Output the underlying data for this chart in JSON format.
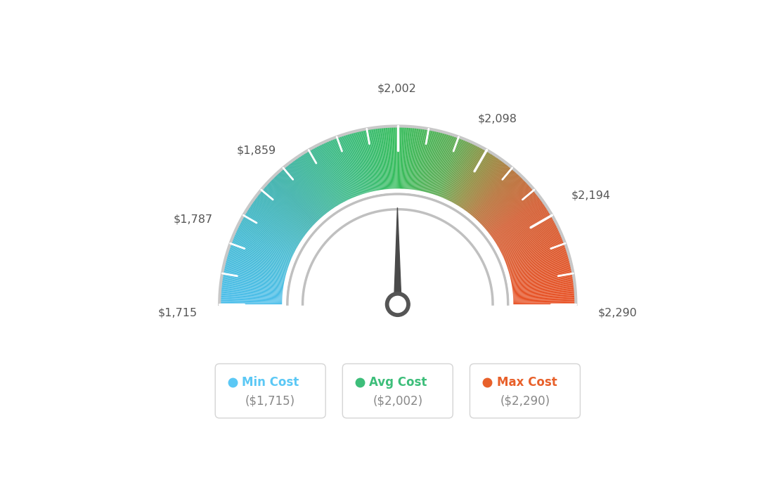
{
  "min_val": 1715,
  "max_val": 2290,
  "avg_val": 2002,
  "tick_values_labeled": [
    1715,
    1787,
    1859,
    2002,
    2098,
    2194,
    2290
  ],
  "colors": {
    "min_dot": "#5BC8F5",
    "avg_dot": "#3DBE7A",
    "max_dot": "#E8602A",
    "needle": "#4a4a4a",
    "bg": "#ffffff"
  },
  "color_stops": [
    [
      0.0,
      [
        75,
        190,
        235
      ]
    ],
    [
      0.13,
      [
        65,
        185,
        210
      ]
    ],
    [
      0.25,
      [
        55,
        175,
        170
      ]
    ],
    [
      0.375,
      [
        55,
        185,
        130
      ]
    ],
    [
      0.5,
      [
        52,
        188,
        90
      ]
    ],
    [
      0.61,
      [
        90,
        170,
        80
      ]
    ],
    [
      0.67,
      [
        140,
        140,
        60
      ]
    ],
    [
      0.73,
      [
        180,
        110,
        50
      ]
    ],
    [
      0.8,
      [
        210,
        90,
        45
      ]
    ],
    [
      1.0,
      [
        232,
        80,
        35
      ]
    ]
  ],
  "legend": {
    "min_label": "Min Cost",
    "avg_label": "Avg Cost",
    "max_label": "Max Cost",
    "min_value": "($1,715)",
    "avg_value": "($2,002)",
    "max_value": "($2,290)"
  }
}
